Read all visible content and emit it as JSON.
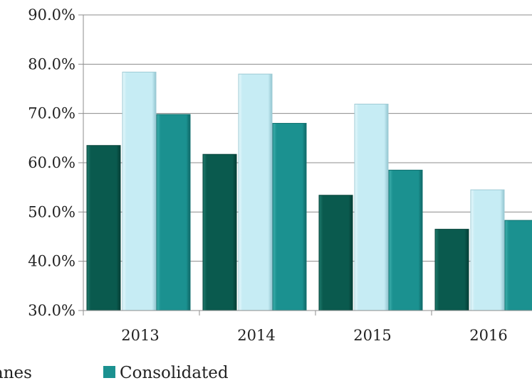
{
  "chart_data": {
    "type": "bar",
    "categories": [
      "2013",
      "2014",
      "2015",
      "2016"
    ],
    "series": [
      {
        "name": "",
        "color": "#0a5a4e",
        "values": [
          63.5,
          61.7,
          53.4,
          46.5
        ]
      },
      {
        "name": "",
        "color": "#c6ecf4",
        "values": [
          78.4,
          78.0,
          71.9,
          54.5
        ]
      },
      {
        "name": "Consolidated",
        "color": "#1b9190",
        "values": [
          69.8,
          68.0,
          58.5,
          48.3
        ]
      }
    ],
    "y_ticks": [
      "30.0%",
      "40.0%",
      "50.0%",
      "60.0%",
      "70.0%",
      "80.0%",
      "90.0%"
    ],
    "ylim": [
      30,
      90
    ],
    "grid": true,
    "legend": {
      "position": "bottom",
      "partial_label": "anes",
      "label": "Consolidated"
    }
  }
}
